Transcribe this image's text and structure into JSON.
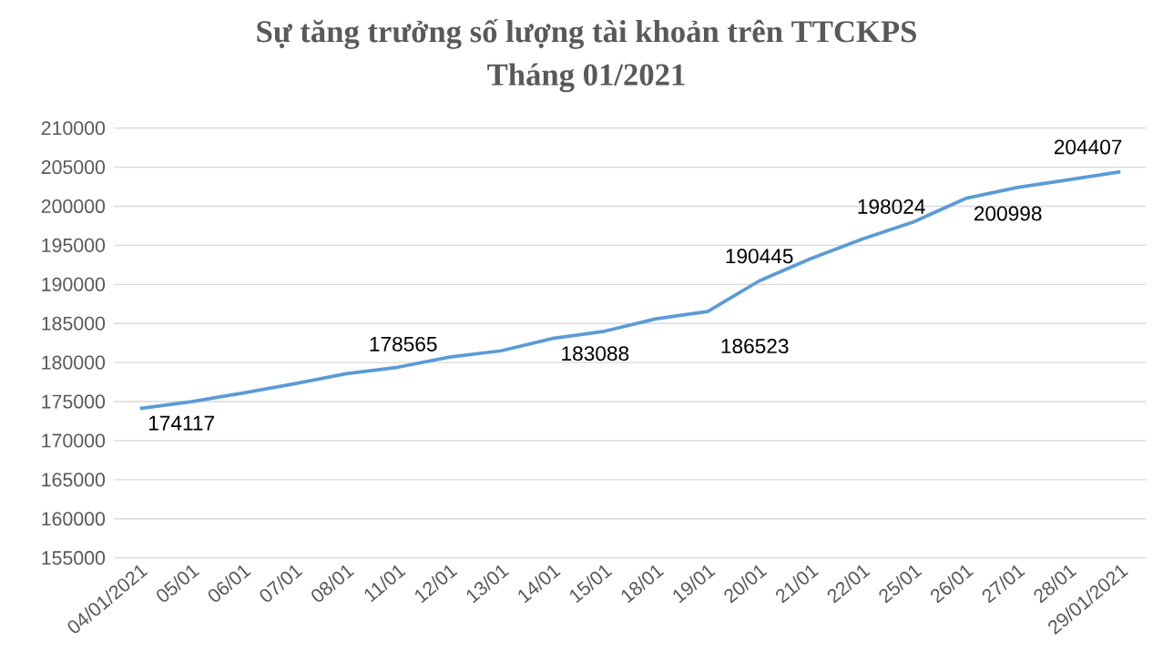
{
  "chart_data": {
    "type": "line",
    "title": "Sự tăng trưởng số lượng tài khoản trên TTCKPS",
    "subtitle": "Tháng 01/2021",
    "categories": [
      "04/01/2021",
      "05/01",
      "06/01",
      "07/01",
      "08/01",
      "11/01",
      "12/01",
      "13/01",
      "14/01",
      "15/01",
      "18/01",
      "19/01",
      "20/01",
      "21/01",
      "22/01",
      "25/01",
      "26/01",
      "27/01",
      "28/01",
      "29/01/2021"
    ],
    "values": [
      174117,
      175000,
      176100,
      177300,
      178565,
      179400,
      180700,
      181500,
      183088,
      184000,
      185600,
      186523,
      190445,
      193300,
      195800,
      198024,
      200998,
      202400,
      203400,
      204407
    ],
    "value_labels": [
      "174117",
      null,
      null,
      null,
      "178565",
      null,
      null,
      null,
      "183088",
      null,
      null,
      "186523",
      "190445",
      null,
      null,
      "198024",
      "200998",
      null,
      null,
      "204407"
    ],
    "color": "#5b9bd5",
    "ylim": [
      155000,
      210000
    ],
    "yticks": [
      155000,
      160000,
      165000,
      170000,
      175000,
      180000,
      185000,
      190000,
      195000,
      200000,
      205000,
      210000
    ],
    "grid": "y",
    "marker": "none",
    "line_style": "solid"
  }
}
